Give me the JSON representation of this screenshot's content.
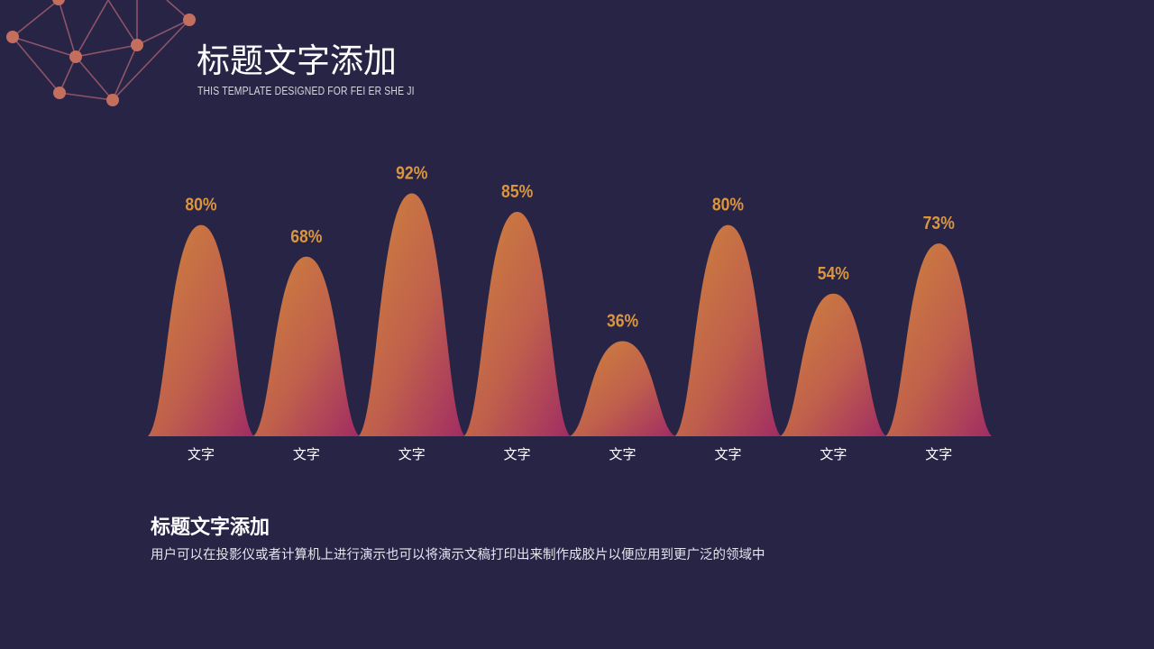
{
  "header": {
    "title": "标题文字添加",
    "subtitle": "THIS TEMPLATE DESIGNED FOR FEI ER SHE JI"
  },
  "colors": {
    "background": "#282446",
    "gradient_top": "#d0843c",
    "gradient_bottom": "#a02c64",
    "value_label": "#d9953f",
    "network": "#c46e5e"
  },
  "chart_data": {
    "type": "area",
    "categories": [
      "文字",
      "文字",
      "文字",
      "文字",
      "文字",
      "文字",
      "文字",
      "文字"
    ],
    "values": [
      80,
      68,
      92,
      85,
      36,
      80,
      54,
      73
    ],
    "value_labels": [
      "80%",
      "68%",
      "92%",
      "85%",
      "36%",
      "80%",
      "54%",
      "73%"
    ],
    "ylim": [
      0,
      100
    ],
    "grid": false,
    "legend": "none"
  },
  "footer": {
    "title": "标题文字添加",
    "text": "用户可以在投影仪或者计算机上进行演示也可以将演示文稿打印出来制作成胶片以便应用到更广泛的领域中"
  }
}
